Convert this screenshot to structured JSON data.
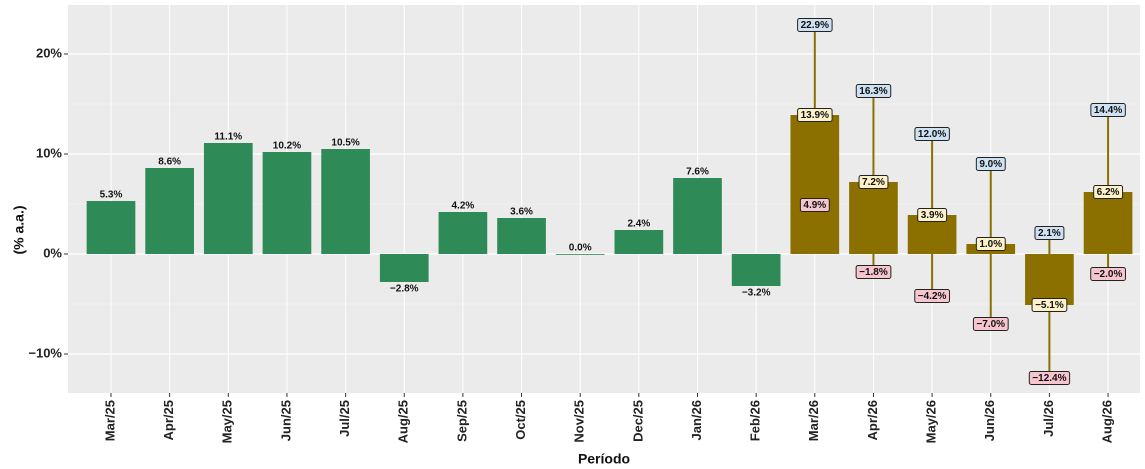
{
  "chart_data": {
    "type": "bar",
    "x_label": "Período",
    "y_label": "(% a.a.)",
    "categories": [
      "Mar/25",
      "Apr/25",
      "May/25",
      "Jun/25",
      "Jul/25",
      "Aug/25",
      "Sep/25",
      "Oct/25",
      "Nov/25",
      "Dec/25",
      "Jan/26",
      "Feb/26",
      "Mar/26",
      "Apr/26",
      "May/26",
      "Jun/26",
      "Jul/26",
      "Aug/26"
    ],
    "series": [
      {
        "color": "#2e8b57",
        "values": [
          5.3,
          8.6,
          11.1,
          10.2,
          10.5,
          -2.8,
          4.2,
          3.6,
          0.0,
          2.4,
          7.6,
          -3.2,
          null,
          null,
          null,
          null,
          null,
          null
        ],
        "value_labels": [
          "5.3%",
          "8.6%",
          "11.1%",
          "10.2%",
          "10.5%",
          "−2.8%",
          "4.2%",
          "3.6%",
          "0.0%",
          "2.4%",
          "7.6%",
          "−3.2%",
          null,
          null,
          null,
          null,
          null,
          null
        ]
      },
      {
        "color": "#8b7000",
        "label_fill": "#fdf1c9",
        "values": [
          null,
          null,
          null,
          null,
          null,
          null,
          null,
          null,
          null,
          null,
          null,
          null,
          13.9,
          7.2,
          3.9,
          1.0,
          -5.1,
          6.2
        ],
        "value_labels": [
          null,
          null,
          null,
          null,
          null,
          null,
          null,
          null,
          null,
          null,
          null,
          null,
          "13.9%",
          "7.2%",
          "3.9%",
          "1.0%",
          "−5.1%",
          "6.2%"
        ],
        "upper": [
          null,
          null,
          null,
          null,
          null,
          null,
          null,
          null,
          null,
          null,
          null,
          null,
          22.9,
          16.3,
          12.0,
          9.0,
          2.1,
          14.4
        ],
        "upper_labels": [
          null,
          null,
          null,
          null,
          null,
          null,
          null,
          null,
          null,
          null,
          null,
          null,
          "22.9%",
          "16.3%",
          "12.0%",
          "9.0%",
          "2.1%",
          "14.4%"
        ],
        "upper_fill": "#cfe2f3",
        "lower": [
          null,
          null,
          null,
          null,
          null,
          null,
          null,
          null,
          null,
          null,
          null,
          null,
          4.9,
          -1.8,
          -4.2,
          -7.0,
          -12.4,
          -2.0
        ],
        "lower_labels": [
          null,
          null,
          null,
          null,
          null,
          null,
          null,
          null,
          null,
          null,
          null,
          null,
          "4.9%",
          "−1.8%",
          "−4.2%",
          "−7.0%",
          "−12.4%",
          "−2.0%"
        ],
        "lower_fill": "#f7c5cf"
      }
    ],
    "ylim": [
      -13.9,
      24.9
    ],
    "yticks": [
      {
        "value": -10,
        "label": "−10%"
      },
      {
        "value": 0,
        "label": "0%"
      },
      {
        "value": 10,
        "label": "10%"
      },
      {
        "value": 20,
        "label": "20%"
      }
    ],
    "yminor": [
      -5,
      5,
      15
    ],
    "grid": true
  }
}
